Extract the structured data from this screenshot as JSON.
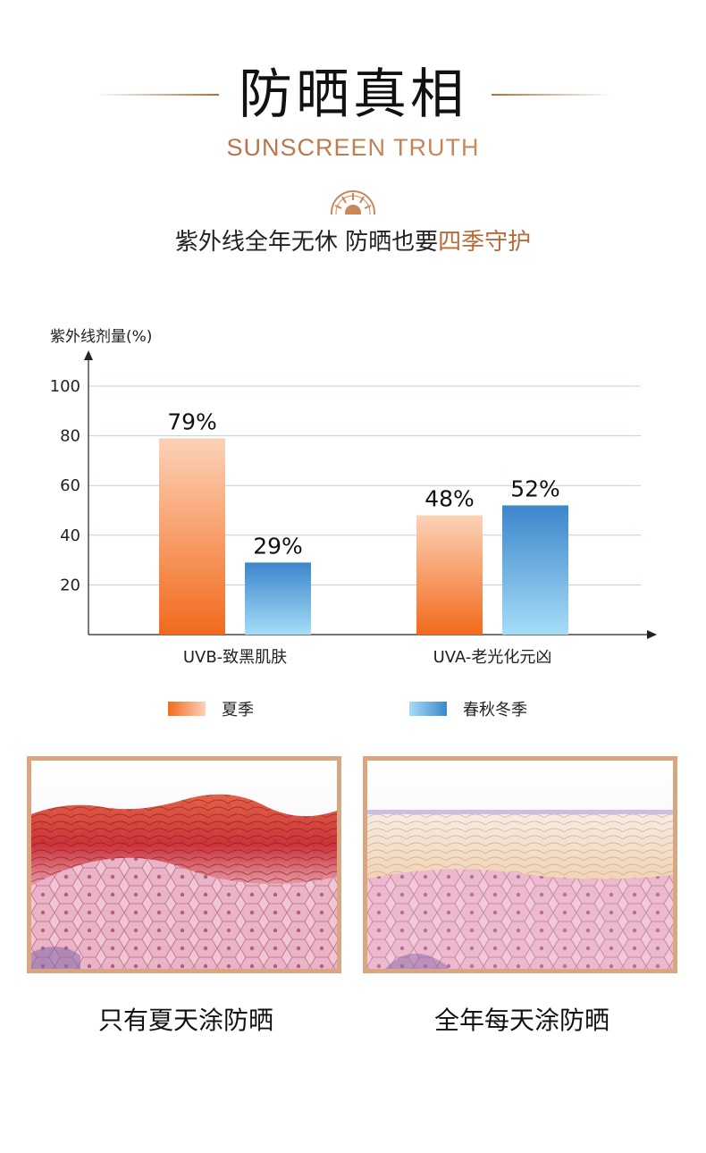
{
  "header": {
    "title": "防晒真相",
    "subtitle": "SUNSCREEN TRUTH",
    "tagline_prefix": "紫外线全年无休 防晒也要",
    "tagline_highlight": "四季守护"
  },
  "colors": {
    "accent": "#b26e3c",
    "summer_top": "#fcd2b8",
    "summer_bottom": "#f26a1c",
    "autumn_top": "#3c86cc",
    "autumn_bottom": "#a6ddf7",
    "panel_border": "#d8a681"
  },
  "chart_data": {
    "type": "bar",
    "title": "",
    "ylabel": "紫外线剂量(%)",
    "xlabel": "",
    "ylim": [
      0,
      100
    ],
    "yticks": [
      20,
      40,
      60,
      80,
      100
    ],
    "grid": true,
    "categories": [
      "UVB-致黑肌肤",
      "UVA-老光化元凶"
    ],
    "series": [
      {
        "name": "夏季",
        "values": [
          79,
          48
        ],
        "labels": [
          "79%",
          "48%"
        ]
      },
      {
        "name": "春秋冬季",
        "values": [
          29,
          52
        ],
        "labels": [
          "29%",
          "52%"
        ]
      }
    ],
    "legend_position": "bottom"
  },
  "panels": {
    "left_caption": "只有夏天涂防晒",
    "right_caption": "全年每天涂防晒"
  },
  "icons": {
    "decor": "sun-emblem-icon"
  }
}
